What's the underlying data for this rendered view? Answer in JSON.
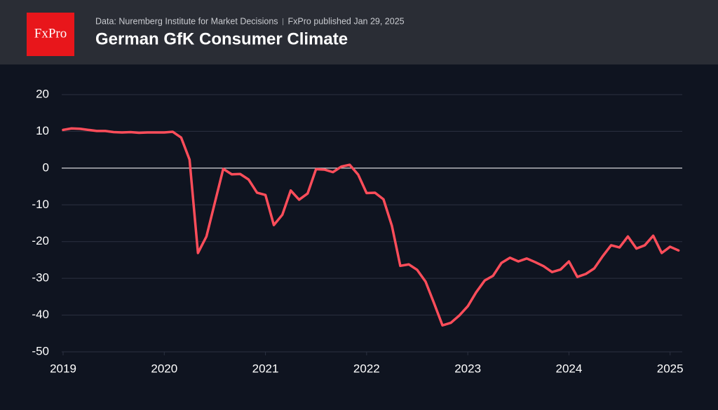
{
  "chart_data": {
    "type": "line",
    "logo": "FxPro",
    "source": "Data: Nuremberg Institute for Market Decisions",
    "published": "FxPro published Jan 29, 2025",
    "title": "German GfK Consumer Climate",
    "color": "#ff4d5a",
    "grid": true,
    "xlim": [
      2019,
      2025.12
    ],
    "xticks": [
      2019,
      2020,
      2021,
      2022,
      2023,
      2024,
      2025
    ],
    "ylim": [
      -50,
      20
    ],
    "yticks": [
      -50,
      -40,
      -30,
      -20,
      -10,
      0,
      10,
      20
    ],
    "x": [
      2019,
      2019.083,
      2019.167,
      2019.25,
      2019.333,
      2019.417,
      2019.5,
      2019.583,
      2019.667,
      2019.75,
      2019.833,
      2019.917,
      2020,
      2020.083,
      2020.167,
      2020.25,
      2020.333,
      2020.417,
      2020.5,
      2020.583,
      2020.667,
      2020.75,
      2020.833,
      2020.917,
      2021,
      2021.083,
      2021.167,
      2021.25,
      2021.333,
      2021.417,
      2021.5,
      2021.583,
      2021.667,
      2021.75,
      2021.833,
      2021.917,
      2022,
      2022.083,
      2022.167,
      2022.25,
      2022.333,
      2022.417,
      2022.5,
      2022.583,
      2022.667,
      2022.75,
      2022.833,
      2022.917,
      2023,
      2023.083,
      2023.167,
      2023.25,
      2023.333,
      2023.417,
      2023.5,
      2023.583,
      2023.667,
      2023.75,
      2023.833,
      2023.917,
      2024,
      2024.083,
      2024.167,
      2024.25,
      2024.333,
      2024.417,
      2024.5,
      2024.583,
      2024.667,
      2024.75,
      2024.833,
      2024.917,
      2025,
      2025.083
    ],
    "values": [
      10.4,
      10.8,
      10.7,
      10.4,
      10.1,
      10.1,
      9.8,
      9.7,
      9.8,
      9.6,
      9.7,
      9.7,
      9.7,
      9.9,
      8.3,
      2.3,
      -23.1,
      -18.6,
      -9.4,
      -0.2,
      -1.7,
      -1.6,
      -3.1,
      -6.7,
      -7.3,
      -15.5,
      -12.7,
      -6.1,
      -8.6,
      -6.9,
      -0.3,
      -0.4,
      -1.1,
      0.4,
      0.9,
      -1.8,
      -6.8,
      -6.7,
      -8.5,
      -15.7,
      -26.6,
      -26.2,
      -27.7,
      -30.9,
      -36.8,
      -42.8,
      -42.1,
      -40.1,
      -37.6,
      -33.8,
      -30.6,
      -29.3,
      -25.8,
      -24.4,
      -25.4,
      -24.6,
      -25.6,
      -26.7,
      -28.3,
      -27.6,
      -25.4,
      -29.6,
      -28.8,
      -27.3,
      -24.0,
      -21.0,
      -21.6,
      -18.6,
      -21.9,
      -21.0,
      -18.4,
      -23.1,
      -21.4,
      -22.4
    ]
  }
}
